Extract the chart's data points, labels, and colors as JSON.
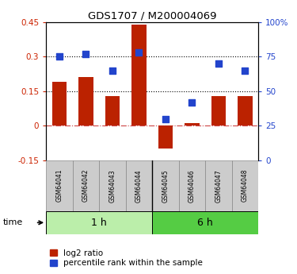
{
  "title": "GDS1707 / M200004069",
  "samples": [
    "GSM64041",
    "GSM64042",
    "GSM64043",
    "GSM64044",
    "GSM64045",
    "GSM64046",
    "GSM64047",
    "GSM64048"
  ],
  "log2_ratio": [
    0.19,
    0.21,
    0.13,
    0.44,
    -0.1,
    0.01,
    0.13,
    0.13
  ],
  "percentile_rank": [
    75,
    77,
    65,
    78,
    30,
    42,
    70,
    65
  ],
  "groups": [
    {
      "label": "1 h",
      "start": 0,
      "end": 4,
      "color": "#bbeeaa"
    },
    {
      "label": "6 h",
      "start": 4,
      "end": 8,
      "color": "#55cc44"
    }
  ],
  "ylim_left": [
    -0.15,
    0.45
  ],
  "ylim_right": [
    0,
    100
  ],
  "yticks_left": [
    -0.15,
    0,
    0.15,
    0.3,
    0.45
  ],
  "yticks_right": [
    0,
    25,
    50,
    75,
    100
  ],
  "ytick_labels_left": [
    "-0.15",
    "0",
    "0.15",
    "0.3",
    "0.45"
  ],
  "ytick_labels_right": [
    "0",
    "25",
    "50",
    "75",
    "100%"
  ],
  "hlines": [
    0.3,
    0.15
  ],
  "bar_color": "#bb2200",
  "dot_color": "#2244cc",
  "zero_line_color": "#cc4444",
  "hline_color": "#000000",
  "left_label_color": "#cc2200",
  "right_label_color": "#2244cc",
  "legend_bar_label": "log2 ratio",
  "legend_dot_label": "percentile rank within the sample",
  "time_label": "time",
  "bar_width": 0.55,
  "dot_size": 40,
  "sample_box_color": "#cccccc",
  "sample_box_edge": "#888888"
}
